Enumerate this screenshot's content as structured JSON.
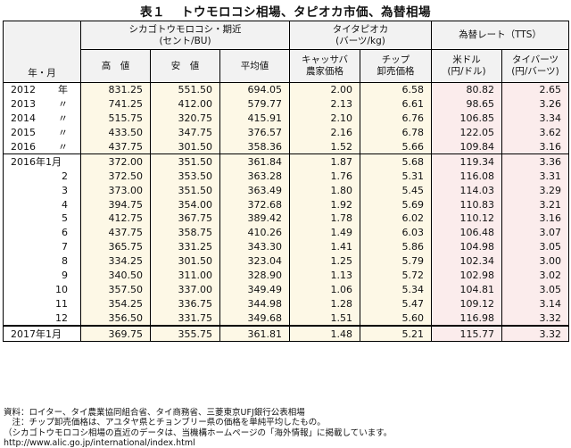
{
  "title": {
    "no": "表１",
    "text": "トウモロコシ相場、タピオカ市価、為替相場"
  },
  "header": {
    "row_label": "年・月",
    "corn_group": "シカゴトウモロコシ・期近",
    "corn_unit": "(セント/BU)",
    "tapioca_group": "タイタピオカ",
    "tapioca_unit": "(バーツ/kg)",
    "fx_group": "為替レート（TTS）",
    "cols": {
      "high": "高　値",
      "low": "安　値",
      "avg": "平均値",
      "cassava_1": "キャッサバ",
      "cassava_2": "農家価格",
      "chip_1": "チップ",
      "chip_2": "卸売価格",
      "usd_1": "米ドル",
      "usd_2": "(円/ドル)",
      "thb_1": "タイバーツ",
      "thb_2": "(円/バーツ)"
    }
  },
  "rows": [
    {
      "year": "2012",
      "suffix": "年",
      "high": "831.25",
      "low": "551.50",
      "avg": "694.05",
      "cassava": "2.00",
      "chip": "6.58",
      "usd": "80.82",
      "thb": "2.65"
    },
    {
      "year": "2013",
      "suffix": "〃",
      "high": "741.25",
      "low": "412.00",
      "avg": "579.77",
      "cassava": "2.13",
      "chip": "6.61",
      "usd": "98.65",
      "thb": "3.26"
    },
    {
      "year": "2014",
      "suffix": "〃",
      "high": "515.75",
      "low": "320.75",
      "avg": "415.91",
      "cassava": "2.10",
      "chip": "6.76",
      "usd": "106.85",
      "thb": "3.34"
    },
    {
      "year": "2015",
      "suffix": "〃",
      "high": "433.50",
      "low": "347.75",
      "avg": "376.57",
      "cassava": "2.16",
      "chip": "6.78",
      "usd": "122.05",
      "thb": "3.62"
    },
    {
      "year": "2016",
      "suffix": "〃",
      "high": "437.75",
      "low": "301.50",
      "avg": "358.36",
      "cassava": "1.52",
      "chip": "5.66",
      "usd": "109.84",
      "thb": "3.16"
    },
    {
      "label": "2016年1月",
      "high": "372.00",
      "low": "351.50",
      "avg": "361.84",
      "cassava": "1.87",
      "chip": "5.68",
      "usd": "119.34",
      "thb": "3.36"
    },
    {
      "label": "2",
      "high": "372.50",
      "low": "353.50",
      "avg": "363.28",
      "cassava": "1.76",
      "chip": "5.31",
      "usd": "116.08",
      "thb": "3.31"
    },
    {
      "label": "3",
      "high": "373.00",
      "low": "351.50",
      "avg": "363.49",
      "cassava": "1.80",
      "chip": "5.45",
      "usd": "114.03",
      "thb": "3.29"
    },
    {
      "label": "4",
      "high": "394.75",
      "low": "354.00",
      "avg": "372.68",
      "cassava": "1.92",
      "chip": "5.69",
      "usd": "110.83",
      "thb": "3.21"
    },
    {
      "label": "5",
      "high": "412.75",
      "low": "367.75",
      "avg": "389.42",
      "cassava": "1.78",
      "chip": "6.02",
      "usd": "110.12",
      "thb": "3.16"
    },
    {
      "label": "6",
      "high": "437.75",
      "low": "358.75",
      "avg": "410.26",
      "cassava": "1.49",
      "chip": "6.03",
      "usd": "106.48",
      "thb": "3.07"
    },
    {
      "label": "7",
      "high": "365.75",
      "low": "331.25",
      "avg": "343.30",
      "cassava": "1.41",
      "chip": "5.86",
      "usd": "104.98",
      "thb": "3.05"
    },
    {
      "label": "8",
      "high": "334.25",
      "low": "301.50",
      "avg": "323.04",
      "cassava": "1.25",
      "chip": "5.79",
      "usd": "102.34",
      "thb": "3.00"
    },
    {
      "label": "9",
      "high": "340.50",
      "low": "311.00",
      "avg": "328.90",
      "cassava": "1.13",
      "chip": "5.72",
      "usd": "102.98",
      "thb": "3.02"
    },
    {
      "label": "10",
      "high": "357.50",
      "low": "337.00",
      "avg": "349.49",
      "cassava": "1.06",
      "chip": "5.34",
      "usd": "104.81",
      "thb": "3.05"
    },
    {
      "label": "11",
      "high": "354.25",
      "low": "336.75",
      "avg": "344.98",
      "cassava": "1.28",
      "chip": "5.47",
      "usd": "109.12",
      "thb": "3.14"
    },
    {
      "label": "12",
      "high": "356.50",
      "low": "331.75",
      "avg": "349.68",
      "cassava": "1.51",
      "chip": "5.60",
      "usd": "116.98",
      "thb": "3.32"
    },
    {
      "label": "2017年1月",
      "high": "369.75",
      "low": "355.75",
      "avg": "361.81",
      "cassava": "1.48",
      "chip": "5.21",
      "usd": "115.77",
      "thb": "3.32"
    }
  ],
  "notes": {
    "source": "資料：ロイター、タイ農業協同組合省、タイ商務省、三菱東京UFJ銀行公表相場",
    "note": "　注：チップ卸売価格は、アユタヤ県とチョンブリー県の価格を単純平均したもの。",
    "ref": "（シカゴトウモロコシ相場の直近のデータは、当機構ホームページの「海外情報」に掲載しています。",
    "url": "http://www.alic.go.jp/international/index.html"
  },
  "colors": {
    "header_bg": "#f2f2f2",
    "cream": "#fdf8e6",
    "pink": "#fbecec"
  }
}
